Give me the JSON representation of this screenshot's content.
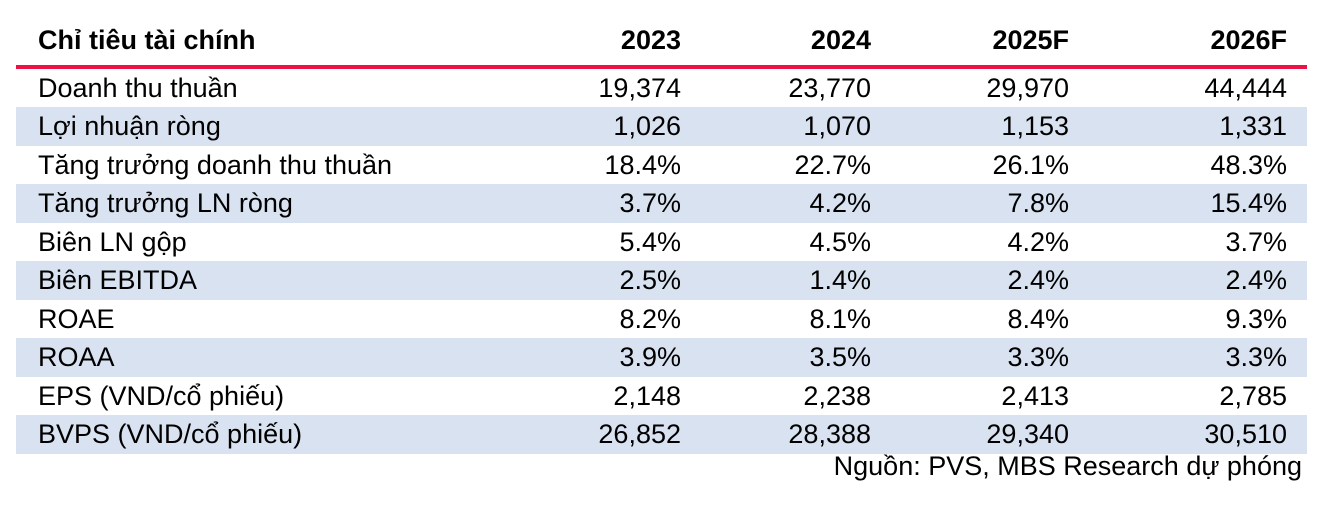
{
  "table": {
    "header": {
      "label": "Chỉ tiêu tài chính",
      "columns": [
        "2023",
        "2024",
        "2025F",
        "2026F"
      ]
    },
    "rows": [
      {
        "label": "Doanh thu thuần",
        "values": [
          "19,374",
          "23,770",
          "29,970",
          "44,444"
        ]
      },
      {
        "label": "Lợi nhuận ròng",
        "values": [
          "1,026",
          "1,070",
          "1,153",
          "1,331"
        ]
      },
      {
        "label": "Tăng trưởng doanh thu thuần",
        "values": [
          "18.4%",
          "22.7%",
          "26.1%",
          "48.3%"
        ]
      },
      {
        "label": "Tăng trưởng LN ròng",
        "values": [
          "3.7%",
          "4.2%",
          "7.8%",
          "15.4%"
        ]
      },
      {
        "label": "Biên LN gộp",
        "values": [
          "5.4%",
          "4.5%",
          "4.2%",
          "3.7%"
        ]
      },
      {
        "label": "Biên EBITDA",
        "values": [
          "2.5%",
          "1.4%",
          "2.4%",
          "2.4%"
        ]
      },
      {
        "label": "ROAE",
        "values": [
          "8.2%",
          "8.1%",
          "8.4%",
          "9.3%"
        ]
      },
      {
        "label": "ROAA",
        "values": [
          "3.9%",
          "3.5%",
          "3.3%",
          "3.3%"
        ]
      },
      {
        "label": "EPS (VND/cổ phiếu)",
        "values": [
          "2,148",
          "2,238",
          "2,413",
          "2,785"
        ]
      },
      {
        "label": "BVPS (VND/cổ phiếu)",
        "values": [
          "26,852",
          "28,388",
          "29,340",
          "30,510"
        ]
      }
    ],
    "source_note": "Nguồn: PVS, MBS Research dự phóng"
  },
  "colors": {
    "accent_red": "#ED1246",
    "row_alt_blue": "#D9E2F0",
    "text": "#000000"
  }
}
